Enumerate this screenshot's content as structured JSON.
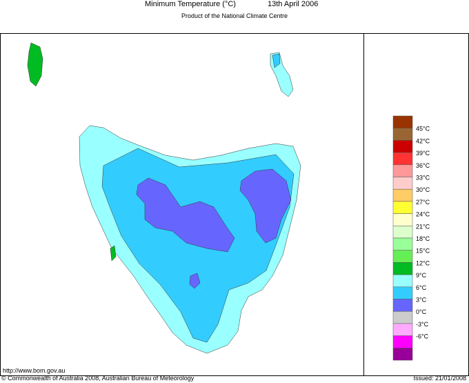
{
  "header": {
    "title": "Minimum Temperature (°C)",
    "date": "13th April 2006",
    "subtitle": "Product of the National Climate Centre"
  },
  "legend": {
    "top_color": "#993300",
    "items": [
      {
        "label": "45°C",
        "color": "#996633"
      },
      {
        "label": "42°C",
        "color": "#cc0000"
      },
      {
        "label": "39°C",
        "color": "#ff3333"
      },
      {
        "label": "36°C",
        "color": "#ff9999"
      },
      {
        "label": "33°C",
        "color": "#ffcccc"
      },
      {
        "label": "30°C",
        "color": "#ffcc66"
      },
      {
        "label": "27°C",
        "color": "#ffff33"
      },
      {
        "label": "24°C",
        "color": "#ffffcc"
      },
      {
        "label": "21°C",
        "color": "#ddffcc"
      },
      {
        "label": "18°C",
        "color": "#99ff99"
      },
      {
        "label": "15°C",
        "color": "#66ee55"
      },
      {
        "label": "12°C",
        "color": "#00bb22"
      },
      {
        "label": "9°C",
        "color": "#99ffff"
      },
      {
        "label": "6°C",
        "color": "#33ccff"
      },
      {
        "label": "3°C",
        "color": "#6666ff"
      },
      {
        "label": "0°C",
        "color": "#cccccc"
      },
      {
        "label": "-3°C",
        "color": "#ffaaff"
      },
      {
        "label": "-6°C",
        "color": "#ff00ff"
      }
    ],
    "bottom_color": "#990099"
  },
  "footer": {
    "url": "http://www.bom.gov.au",
    "copyright": "© Commonwealth of Australia 2008, Australian Bureau of Meteorology",
    "issued": "Issued: 21/01/2008"
  }
}
